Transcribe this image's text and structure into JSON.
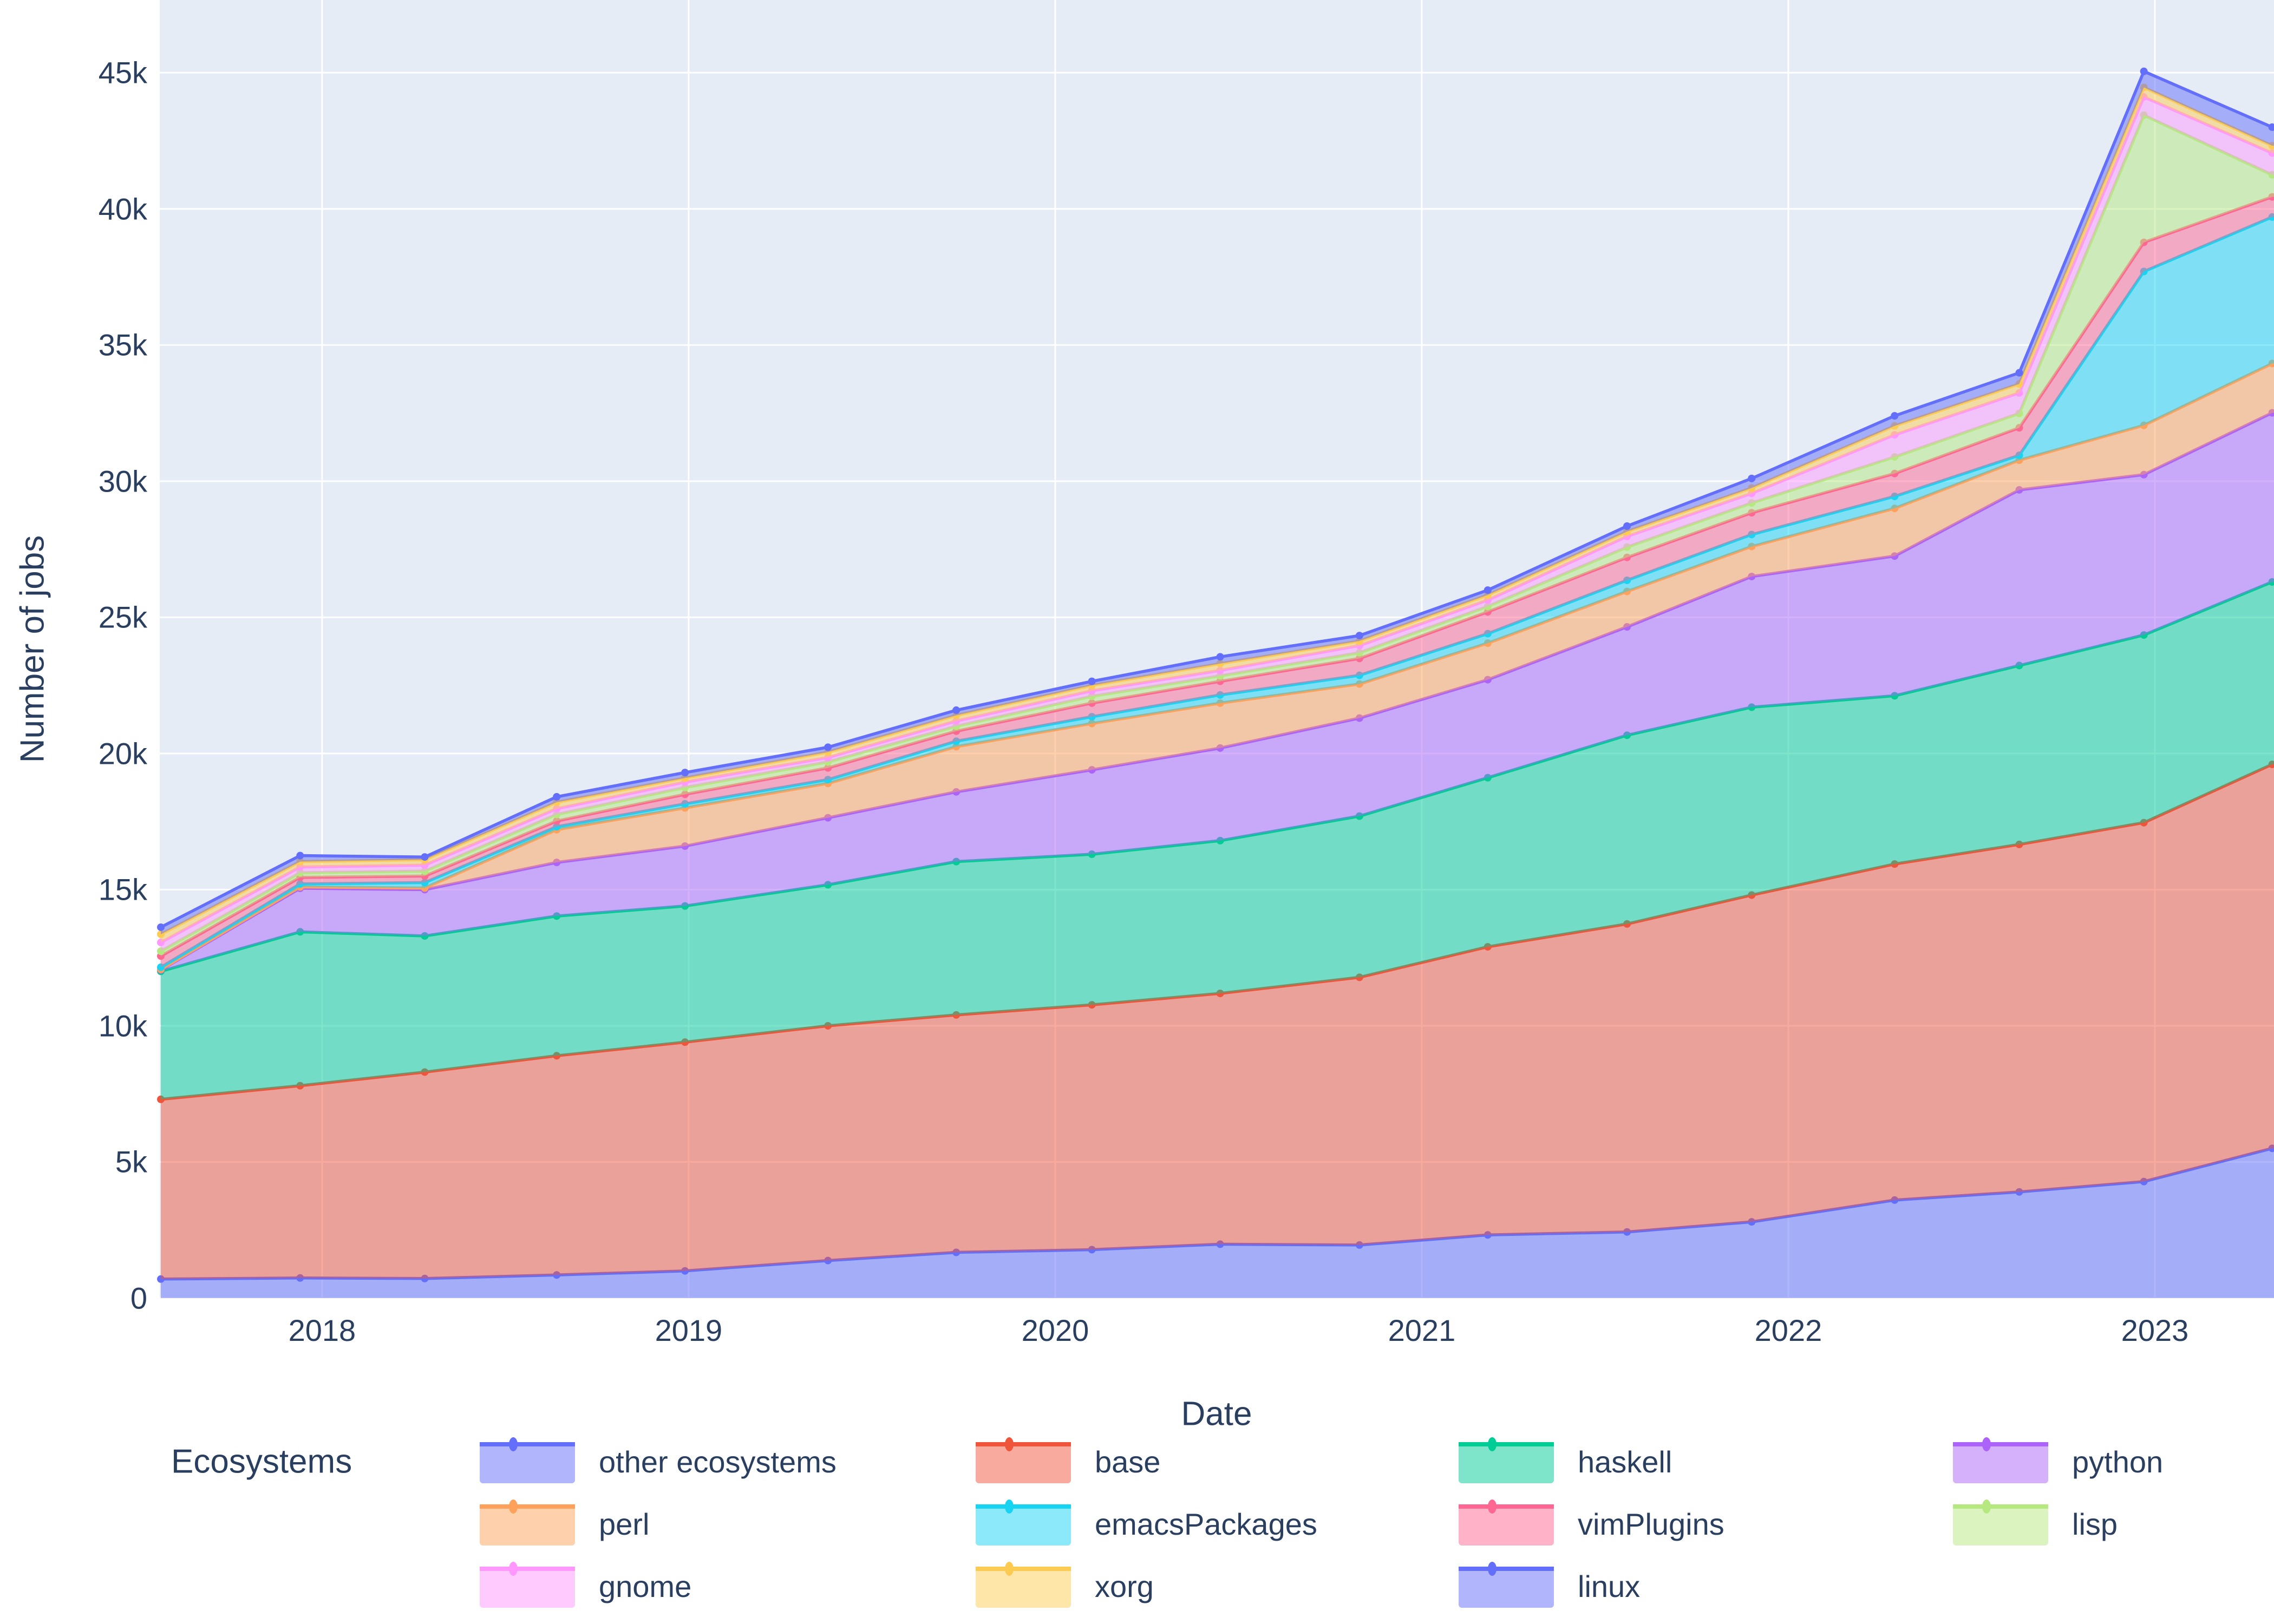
{
  "figure": {
    "plot_bg_color": "#E5ECF6",
    "grid_color": "#FFFFFF",
    "text_color": "#2a3f5f",
    "paper_color": "#FFFFFF"
  },
  "chart_data": {
    "type": "area",
    "stacked": true,
    "title": "",
    "xlabel": "Date",
    "ylabel": "Number of jobs",
    "grid": true,
    "legend_position": "bottom",
    "xlim": [
      2017.557,
      2023.325
    ],
    "ylim": [
      0,
      47670
    ],
    "x": [
      2017.56,
      2017.94,
      2018.28,
      2018.64,
      2018.99,
      2019.38,
      2019.73,
      2020.1,
      2020.45,
      2020.83,
      2021.18,
      2021.56,
      2021.9,
      2022.29,
      2022.63,
      2022.97,
      2023.32
    ],
    "series": [
      {
        "id": "other-ecosystems",
        "name": "other ecosystems",
        "color": "#636EFA",
        "values": [
          700,
          740,
          720,
          850,
          1000,
          1380,
          1680,
          1780,
          1980,
          1950,
          2320,
          2430,
          2800,
          3600,
          3900,
          4280,
          5500
        ]
      },
      {
        "id": "base",
        "name": "base",
        "color": "#EF553B",
        "values": [
          6600,
          7060,
          7580,
          8050,
          8400,
          8620,
          8720,
          8990,
          9210,
          9830,
          10580,
          11310,
          12000,
          12340,
          12760,
          13180,
          14100
        ]
      },
      {
        "id": "haskell",
        "name": "haskell",
        "color": "#00CC96",
        "values": [
          4700,
          5650,
          5000,
          5130,
          5000,
          5180,
          5630,
          5530,
          5610,
          5920,
          6210,
          6930,
          6900,
          6180,
          6570,
          6890,
          6700
        ]
      },
      {
        "id": "python",
        "name": "python",
        "color": "#AB63FA",
        "values": [
          50,
          1600,
          1700,
          1970,
          2200,
          2460,
          2560,
          3100,
          3400,
          3600,
          3600,
          3980,
          4800,
          5130,
          6450,
          5890,
          6210
        ]
      },
      {
        "id": "perl",
        "name": "perl",
        "color": "#FFA15A",
        "values": [
          20,
          50,
          60,
          1200,
          1400,
          1260,
          1660,
          1700,
          1650,
          1250,
          1340,
          1300,
          1100,
          1750,
          1090,
          1810,
          1810
        ]
      },
      {
        "id": "emacs-packages",
        "name": "emacsPackages",
        "color": "#19D3F3",
        "values": [
          80,
          110,
          200,
          110,
          150,
          140,
          200,
          250,
          300,
          320,
          350,
          410,
          440,
          440,
          180,
          5650,
          5380
        ]
      },
      {
        "id": "vim-plugins",
        "name": "vimPlugins",
        "color": "#FF6692",
        "values": [
          410,
          240,
          240,
          210,
          350,
          430,
          370,
          500,
          500,
          620,
          800,
          840,
          800,
          840,
          1010,
          1070,
          740
        ]
      },
      {
        "id": "lisp",
        "name": "lisp",
        "color": "#B6E880",
        "values": [
          180,
          170,
          180,
          240,
          250,
          220,
          180,
          250,
          200,
          210,
          200,
          380,
          360,
          610,
          530,
          4670,
          810
        ]
      },
      {
        "id": "gnome",
        "name": "gnome",
        "color": "#FF97FF",
        "values": [
          320,
          210,
          220,
          210,
          200,
          160,
          190,
          200,
          200,
          260,
          230,
          390,
          350,
          810,
          750,
          670,
          800
        ]
      },
      {
        "id": "xorg",
        "name": "xorg",
        "color": "#FECB52",
        "values": [
          300,
          200,
          200,
          240,
          150,
          200,
          210,
          200,
          250,
          170,
          190,
          180,
          200,
          330,
          330,
          350,
          270
        ]
      },
      {
        "id": "linux",
        "name": "linux",
        "color": "#636EFA",
        "values": [
          260,
          220,
          100,
          200,
          200,
          180,
          190,
          150,
          250,
          200,
          180,
          200,
          350,
          370,
          410,
          590,
          680
        ]
      }
    ],
    "yticks": [
      {
        "v": 0,
        "label": "0"
      },
      {
        "v": 5000,
        "label": "5k"
      },
      {
        "v": 10000,
        "label": "10k"
      },
      {
        "v": 15000,
        "label": "15k"
      },
      {
        "v": 20000,
        "label": "20k"
      },
      {
        "v": 25000,
        "label": "25k"
      },
      {
        "v": 30000,
        "label": "30k"
      },
      {
        "v": 35000,
        "label": "35k"
      },
      {
        "v": 40000,
        "label": "40k"
      },
      {
        "v": 45000,
        "label": "45k"
      }
    ],
    "xticks": [
      {
        "v": 2018,
        "label": "2018"
      },
      {
        "v": 2019,
        "label": "2019"
      },
      {
        "v": 2020,
        "label": "2020"
      },
      {
        "v": 2021,
        "label": "2021"
      },
      {
        "v": 2022,
        "label": "2022"
      },
      {
        "v": 2023,
        "label": "2023"
      }
    ],
    "legend": {
      "title": "Ecosystems",
      "items": [
        "other ecosystems",
        "base",
        "haskell",
        "python",
        "perl",
        "emacsPackages",
        "vimPlugins",
        "lisp",
        "gnome",
        "xorg",
        "linux"
      ]
    }
  }
}
